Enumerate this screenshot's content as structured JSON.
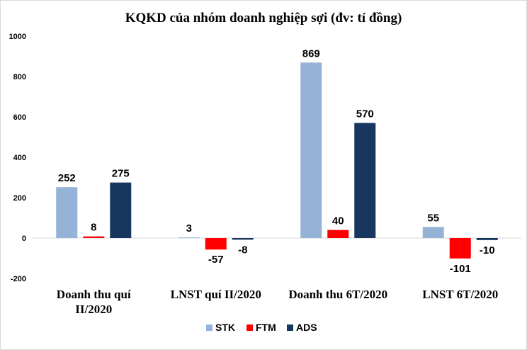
{
  "chart_data": {
    "type": "bar",
    "title": "KQKD của nhóm doanh nghiệp sợi (đv: tỉ đồng)",
    "xlabel": "",
    "ylabel": "",
    "ylim": [
      -200,
      1000
    ],
    "yticks": [
      -200,
      0,
      200,
      400,
      600,
      800,
      1000
    ],
    "grid": false,
    "legend_position": "bottom",
    "categories": [
      [
        "Doanh thu quí",
        "II/2020"
      ],
      [
        "LNST quí II/2020"
      ],
      [
        "Doanh thu 6T/2020"
      ],
      [
        "LNST 6T/2020"
      ]
    ],
    "series": [
      {
        "name": "STK",
        "color": "#95b3d7",
        "values": [
          252,
          3,
          869,
          55
        ]
      },
      {
        "name": "FTM",
        "color": "#ff0000",
        "values": [
          8,
          -57,
          40,
          -101
        ]
      },
      {
        "name": "ADS",
        "color": "#17375e",
        "values": [
          275,
          -8,
          570,
          -10
        ]
      }
    ]
  }
}
